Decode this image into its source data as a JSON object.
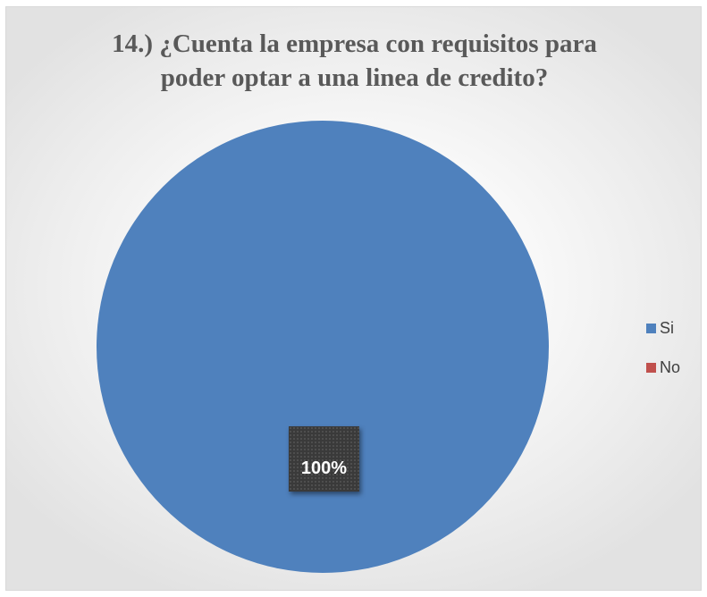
{
  "chart_data": {
    "type": "pie",
    "title_lines": [
      "14.) ¿Cuenta la empresa con requisitos para",
      "poder optar a una linea de credito?"
    ],
    "categories": [
      "Si",
      "No"
    ],
    "values": [
      100,
      0
    ],
    "data_labels": [
      "100%"
    ],
    "colors": [
      "#4f81bd",
      "#c0504d"
    ],
    "legend_position": "right"
  }
}
